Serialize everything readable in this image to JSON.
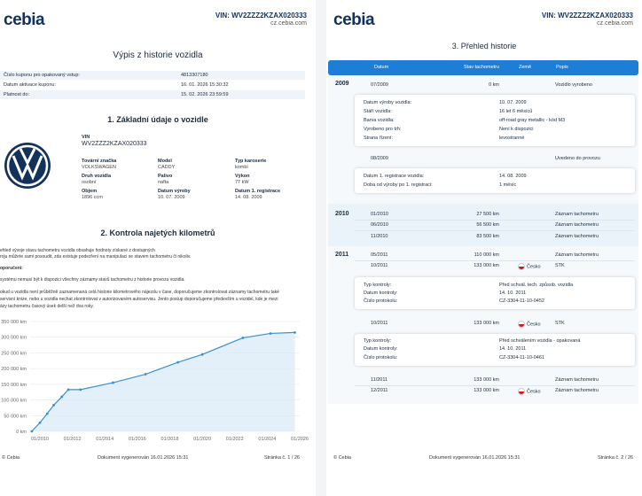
{
  "header": {
    "logo": "cebia",
    "vin_label": "VIN: WV2ZZZ2KZAX020333",
    "site": "cz.cebia.com"
  },
  "page1": {
    "title": "Výpis z historie vozidla",
    "info_rows": [
      {
        "k": "Číslo kuponu pro opakovaný vstup:",
        "v": "4813307180"
      },
      {
        "k": "Datum aktivace kuponu:",
        "v": "16. 01. 2026 15:30:32"
      },
      {
        "k": "Platnost do:",
        "v": "15. 02. 2026 23:59:59"
      }
    ],
    "section1_title": "1. Základní údaje o vozidle",
    "vin_label": "VIN",
    "vin": "WV2ZZZ2KZAX020333",
    "fields": [
      {
        "label": "Tovární značka",
        "value": "VOLKSWAGEN"
      },
      {
        "label": "Model",
        "value": "CADDY"
      },
      {
        "label": "Typ karoserie",
        "value": "kombi"
      },
      {
        "label": "Druh vozidla",
        "value": "osobní"
      },
      {
        "label": "Palivo",
        "value": "nafta"
      },
      {
        "label": "Výkon",
        "value": "77 kW"
      },
      {
        "label": "Objem",
        "value": "1896 ccm"
      },
      {
        "label": "Datum výroby",
        "value": "10. 07. 2009"
      },
      {
        "label": "Datum 1. registrace",
        "value": "14. 08. 2009"
      }
    ],
    "section2_title": "2. Kontrola najetých kilometrů",
    "para1a": "ehled vývoje stavu tachometru vozidla obsahuje hodnoty získané z dostupných",
    "para1b": "roju můžete sami posoudit, zda existuje podezření na manipulaci se stavem tachometru či nikoliv.",
    "para2_title": "oporučení:",
    "para3": "systému nemusí být k dispozici všechny záznamy stavů tachometru z historie provozu vozidla.",
    "para4a": "okud u vozidla není průběžně zaznamenaná celá historie kilometrového nájezdu v čase, doporučujeme zkontrolovat záznamy tachometru také",
    "para4b": "servisní knize, nebo u vozidla nechat zkontrolovat v autorizovaném autoservisu. Jento postup doporučujeme především u vozidel, kde je mezi",
    "para4c": "ázy tachometru časový úsek delší než dva roky.",
    "footer_left": "© Cebia",
    "footer_center": "Dokument vygenerován 16.01.2026 15:31",
    "footer_right": "Stránka č. 1 / 26"
  },
  "chart_data": {
    "type": "line",
    "title": "",
    "xlabel": "",
    "ylabel": "",
    "x_ticks": [
      "01/2010",
      "01/2012",
      "01/2014",
      "01/2016",
      "01/2018",
      "01/2020",
      "01/2022",
      "01/2024",
      "01/2026"
    ],
    "y_ticks": [
      "0 km",
      "50 000 km",
      "100 000 km",
      "150 000 km",
      "200 000 km",
      "250 000 km",
      "300 000 km",
      "350 000 km"
    ],
    "ylim": [
      0,
      350000
    ],
    "xlim": [
      2009.4,
      2026.0
    ],
    "grid": true,
    "color": "#3a8fd0",
    "points": [
      {
        "x": 2009.5,
        "y": 0
      },
      {
        "x": 2010.0,
        "y": 27500
      },
      {
        "x": 2010.45,
        "y": 56500
      },
      {
        "x": 2010.85,
        "y": 83500
      },
      {
        "x": 2011.35,
        "y": 110000
      },
      {
        "x": 2011.75,
        "y": 133000
      },
      {
        "x": 2012.5,
        "y": 133000
      },
      {
        "x": 2014.5,
        "y": 155000
      },
      {
        "x": 2016.5,
        "y": 182000
      },
      {
        "x": 2018.5,
        "y": 220000
      },
      {
        "x": 2020.0,
        "y": 245000
      },
      {
        "x": 2022.5,
        "y": 298000
      },
      {
        "x": 2024.2,
        "y": 312000
      },
      {
        "x": 2025.7,
        "y": 315000
      }
    ]
  },
  "page2": {
    "title": "3. Přehled historie",
    "cols": [
      "Datum",
      "Stav tachometru",
      "Země",
      "Popis"
    ],
    "years": [
      "2009",
      "2010",
      "2011"
    ],
    "events": [
      {
        "date": "07/2009",
        "km": "0 km",
        "desc": "Vozidlo vyrobeno"
      },
      {
        "date": "08/2009",
        "km": "",
        "desc": "Uvedeno do provozu"
      },
      {
        "date": "01/2010",
        "km": "27 500 km",
        "desc": "Záznam tachometru"
      },
      {
        "date": "06/2010",
        "km": "56 500 km",
        "desc": "Záznam tachometru"
      },
      {
        "date": "11/2010",
        "km": "83 500 km",
        "desc": "Záznam tachometru"
      },
      {
        "date": "05/2011",
        "km": "110 000 km",
        "desc": "Záznam tachometru"
      },
      {
        "date": "10/2011",
        "km": "133 000 km",
        "country": "Česko",
        "desc": "STK"
      },
      {
        "date": "10/2011",
        "km": "133 000 km",
        "country": "Česko",
        "desc": "STK"
      },
      {
        "date": "11/2011",
        "km": "133 000 km",
        "desc": "Záznam tachometru"
      },
      {
        "date": "12/2011",
        "km": "133 000 km",
        "country": "Česko",
        "desc": "Záznam tachometru"
      }
    ],
    "box1": [
      {
        "k": "Datum výroby vozidla:",
        "v": "10. 07. 2009"
      },
      {
        "k": "Stáří vozidla:",
        "v": "16 let 6 měsíců"
      },
      {
        "k": "Barva vozidla:",
        "v": "off-road gray metallic - kód M3"
      },
      {
        "k": "Vyrobeno pro trh:",
        "v": "Není k dispozici"
      },
      {
        "k": "Strana řízení:",
        "v": "levostranné"
      }
    ],
    "box2": [
      {
        "k": "Datum 1. registrace vozidla:",
        "v": "14. 08. 2009"
      },
      {
        "k": "Doba od výroby po 1. registraci:",
        "v": "1 měsíc"
      }
    ],
    "box3": [
      {
        "k": "Typ kontroly:",
        "v": "Před schvál. tech. způsob. vozidla"
      },
      {
        "k": "Datum kontroly:",
        "v": "14. 10. 2011"
      },
      {
        "k": "Číslo protokolu:",
        "v": "CZ-3304-11-10-0452"
      }
    ],
    "box4": [
      {
        "k": "Typ kontroly:",
        "v": "Před schválením vozidla - opakovaná"
      },
      {
        "k": "Datum kontroly:",
        "v": "14. 10. 2011"
      },
      {
        "k": "Číslo protokolu:",
        "v": "CZ-3304-11-10-0461"
      }
    ],
    "footer_left": "© Cebia",
    "footer_center": "Dokument vygenerován 16.01.2026 15:31",
    "footer_right": "Stránka č. 2 / 26"
  }
}
